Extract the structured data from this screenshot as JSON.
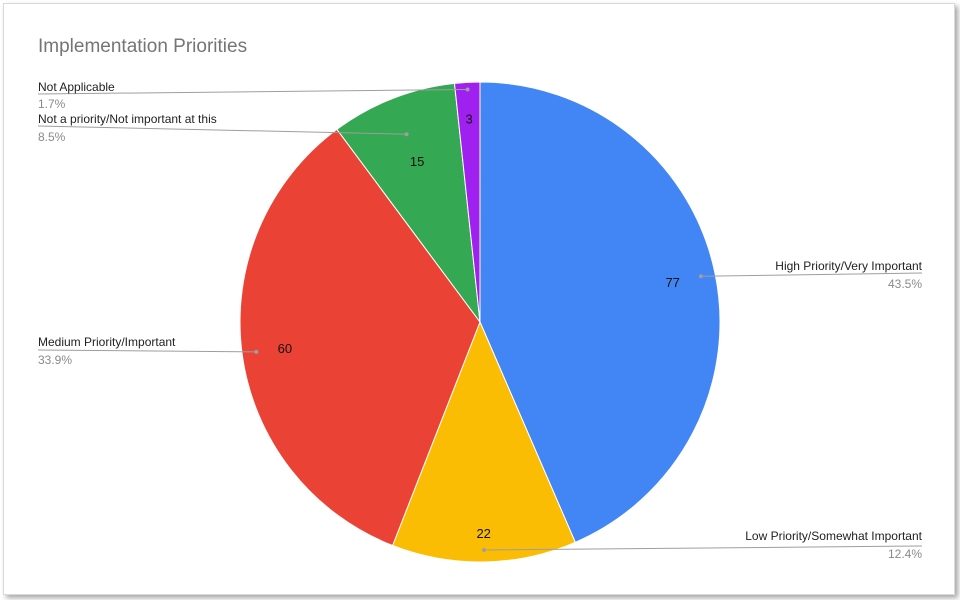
{
  "chart_data": {
    "type": "pie",
    "title": "Implementation Priorities",
    "slices": [
      {
        "label": "High Priority/Very Important",
        "value": 77,
        "percent": "43.5%",
        "color": "#4285f4",
        "side": "right"
      },
      {
        "label": "Low Priority/Somewhat Important",
        "value": 22,
        "percent": "12.4%",
        "color": "#fbbc04",
        "side": "right"
      },
      {
        "label": "Medium Priority/Important",
        "value": 60,
        "percent": "33.9%",
        "color": "#ea4335",
        "side": "left"
      },
      {
        "label": "Not a priority/Not important at this",
        "value": 15,
        "percent": "8.5%",
        "color": "#34a853",
        "side": "left"
      },
      {
        "label": "Not Applicable",
        "value": 3,
        "percent": "1.7%",
        "color": "#a020f0",
        "side": "left"
      }
    ],
    "start_angle": "12 o'clock",
    "direction": "clockwise",
    "legend": "none",
    "labels": "outside with leader lines"
  }
}
